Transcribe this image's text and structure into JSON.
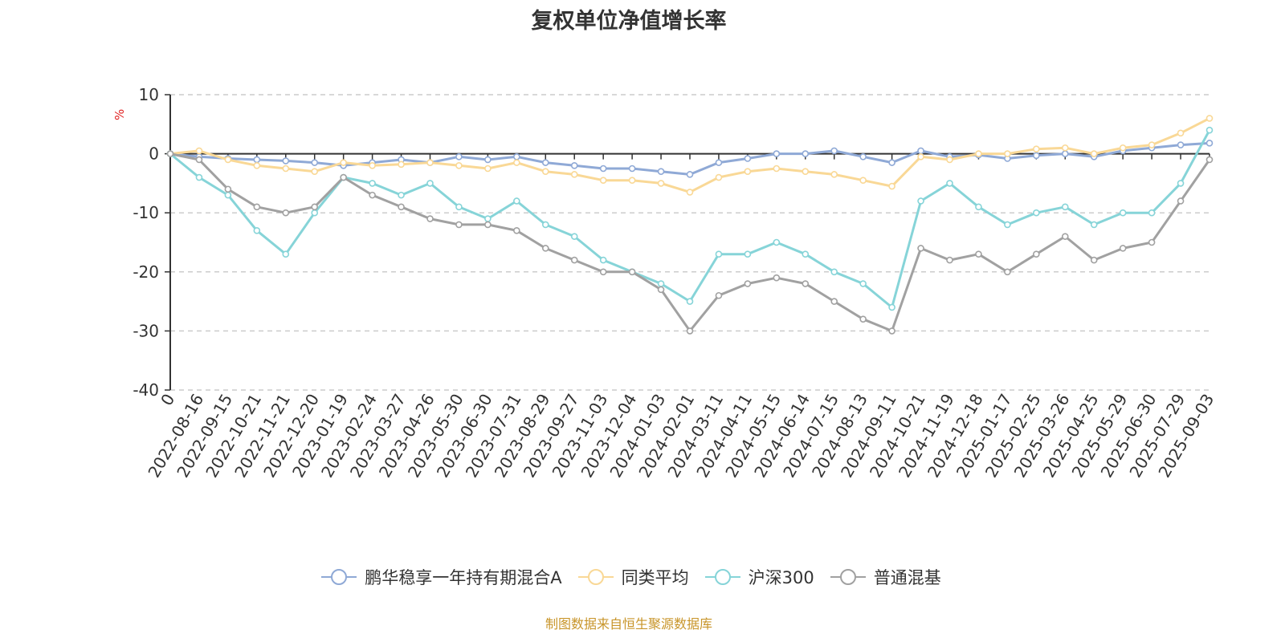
{
  "title": "复权单位净值增长率",
  "source_text": "制图数据来自恒生聚源数据库",
  "chart_data": {
    "type": "line",
    "title": "复权单位净值增长率",
    "ylabel": "%",
    "ylim": [
      -40,
      10
    ],
    "yticks": [
      10,
      0,
      -10,
      -20,
      -30,
      -40
    ],
    "grid": true,
    "legend_position": "bottom",
    "x_tick_labels": [
      "0",
      "2022-08-16",
      "2022-09-15",
      "2022-10-21",
      "2022-11-21",
      "2022-12-20",
      "2023-01-19",
      "2023-02-24",
      "2023-03-27",
      "2023-04-26",
      "2023-05-30",
      "2023-06-30",
      "2023-07-31",
      "2023-08-29",
      "2023-09-27",
      "2023-11-03",
      "2023-12-04",
      "2024-01-03",
      "2024-02-01",
      "2024-03-11",
      "2024-04-11",
      "2024-05-15",
      "2024-06-14",
      "2024-07-15",
      "2024-08-13",
      "2024-09-11",
      "2024-10-21",
      "2024-11-19",
      "2024-12-18",
      "2025-01-17",
      "2025-02-25",
      "2025-03-26",
      "2025-04-25",
      "2025-05-29",
      "2025-06-30",
      "2025-07-29",
      "2025-09-03"
    ],
    "series": [
      {
        "name": "鹏华稳享一年持有期混合A",
        "color": "#8fa9d6",
        "values": [
          0,
          -0.5,
          -0.8,
          -1.0,
          -1.2,
          -1.5,
          -2.0,
          -1.5,
          -1.0,
          -1.5,
          -0.5,
          -1.0,
          -0.5,
          -1.5,
          -2.0,
          -2.5,
          -2.5,
          -3.0,
          -3.5,
          -1.5,
          -0.8,
          0,
          0,
          0.5,
          -0.5,
          -1.5,
          0.5,
          -0.5,
          -0.2,
          -0.8,
          -0.3,
          0,
          -0.5,
          0.5,
          1.0,
          1.5,
          1.8
        ]
      },
      {
        "name": "同类平均",
        "color": "#f9d896",
        "values": [
          0,
          0.5,
          -1.0,
          -2.0,
          -2.5,
          -3.0,
          -1.5,
          -2.0,
          -1.8,
          -1.5,
          -2.0,
          -2.5,
          -1.5,
          -3.0,
          -3.5,
          -4.5,
          -4.5,
          -5.0,
          -6.5,
          -4.0,
          -3.0,
          -2.5,
          -3.0,
          -3.5,
          -4.5,
          -5.5,
          -0.5,
          -1.0,
          0,
          0,
          0.8,
          1.0,
          0,
          1.0,
          1.5,
          3.5,
          6.0
        ]
      },
      {
        "name": "沪深300",
        "color": "#86d4d8",
        "values": [
          0,
          -4.0,
          -7.0,
          -13.0,
          -17.0,
          -10.0,
          -4.0,
          -5.0,
          -7.0,
          -5.0,
          -9.0,
          -11.0,
          -8.0,
          -12.0,
          -14.0,
          -18.0,
          -20.0,
          -22.0,
          -25.0,
          -17.0,
          -17.0,
          -15.0,
          -17.0,
          -20.0,
          -22.0,
          -26.0,
          -8.0,
          -5.0,
          -9.0,
          -12.0,
          -10.0,
          -9.0,
          -12.0,
          -10.0,
          -10.0,
          -5.0,
          4.0
        ]
      },
      {
        "name": "普通混基",
        "color": "#a1a1a1",
        "values": [
          0,
          -1.0,
          -6.0,
          -9.0,
          -10.0,
          -9.0,
          -4.0,
          -7.0,
          -9.0,
          -11.0,
          -12.0,
          -12.0,
          -13.0,
          -16.0,
          -18.0,
          -20.0,
          -20.0,
          -23.0,
          -30.0,
          -24.0,
          -22.0,
          -21.0,
          -22.0,
          -25.0,
          -28.0,
          -30.0,
          -16.0,
          -18.0,
          -17.0,
          -20.0,
          -17.0,
          -14.0,
          -18.0,
          -16.0,
          -15.0,
          -8.0,
          -1.0
        ]
      }
    ]
  }
}
